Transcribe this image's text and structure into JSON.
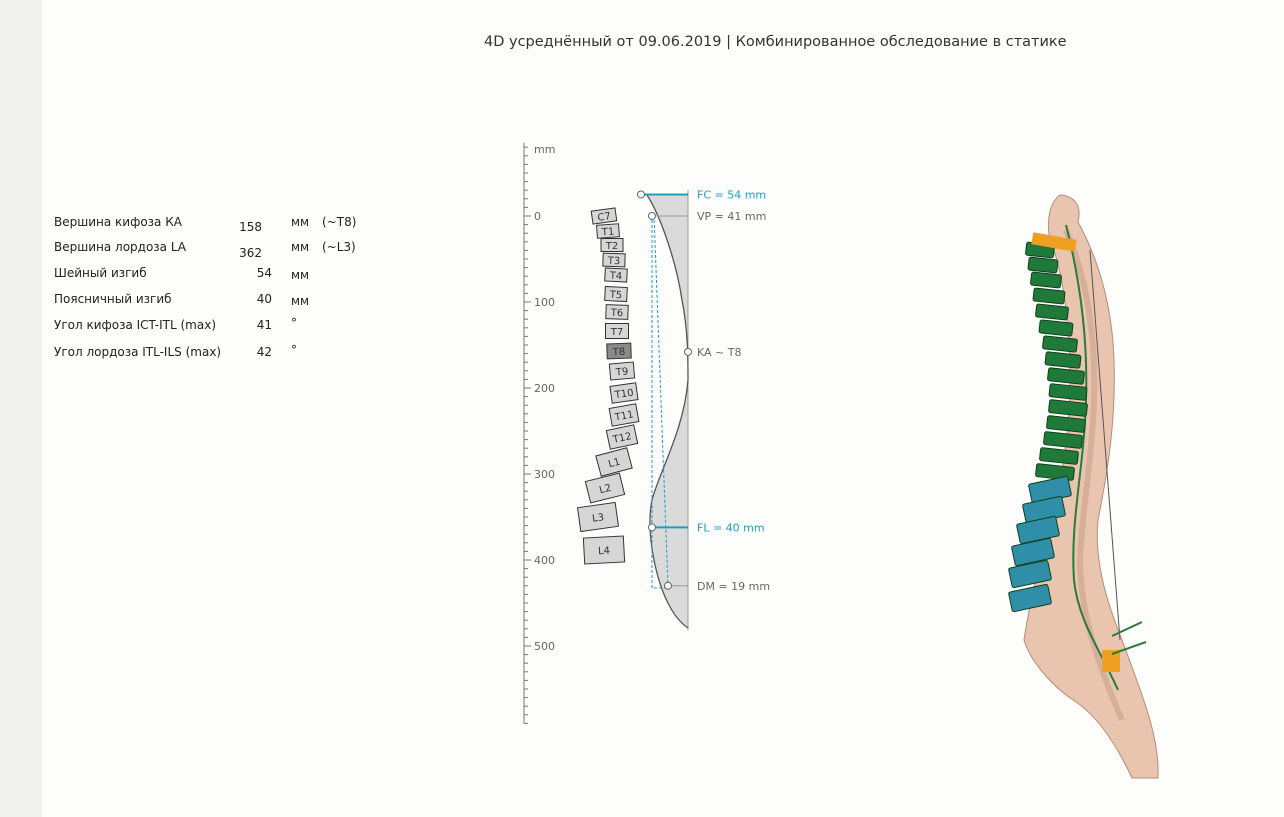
{
  "report": {
    "title": "4D усреднённый от 09.06.2019 | Комбинированное обследование в статике"
  },
  "metrics": [
    {
      "label": "Вершина кифоза КА",
      "value": "158",
      "unit": "мм",
      "note": "(~T8)"
    },
    {
      "label": "Вершина лордоза LA",
      "value": "362",
      "unit": "мм",
      "note": "(~L3)"
    },
    {
      "label": "Шейный изгиб",
      "value": "54",
      "unit": "мм",
      "note": ""
    },
    {
      "label": "Поясничный изгиб",
      "value": "40",
      "unit": "мм",
      "note": ""
    },
    {
      "label": "Угол кифоза ICT-ITL (max)",
      "value": "41",
      "unit": "°",
      "note": ""
    },
    {
      "label": "Угол лордоза ITL-ILS (max)",
      "value": "42",
      "unit": "°",
      "note": ""
    }
  ],
  "profile": {
    "axis": {
      "unit_label": "mm",
      "range": [
        -85,
        590
      ],
      "tick_labels": [
        "0",
        "100",
        "200",
        "300",
        "400",
        "500"
      ]
    },
    "vertebrae": [
      "C7",
      "T1",
      "T2",
      "T3",
      "T4",
      "T5",
      "T6",
      "T7",
      "T8",
      "T9",
      "T10",
      "T11",
      "T12",
      "L1",
      "L2",
      "L3",
      "L4"
    ],
    "highlighted_vertebra": "T8",
    "markers": [
      {
        "label": "FC = 54 mm",
        "depth_mm": -25,
        "accent": true
      },
      {
        "label": "VP = 41 mm",
        "depth_mm": 0,
        "accent": false
      },
      {
        "label": "KA ~ T8",
        "depth_mm": 158,
        "accent": false
      },
      {
        "label": "FL = 40 mm",
        "depth_mm": 362,
        "accent": true
      },
      {
        "label": "DM = 19 mm",
        "depth_mm": 430,
        "accent": false
      }
    ],
    "colors": {
      "accent": "#1a9fbf",
      "highlighted_vertebra": "#8a8a8a",
      "vertebra": "#d6d6d6",
      "curve_fill": "#d4d4d4"
    }
  },
  "model_3d": {
    "colors": {
      "thoracic": "#1f7a3a",
      "lumbar": "#2f8fa8",
      "skin": "#e8c3ad",
      "pelvis_marker": "#f0a020"
    }
  }
}
